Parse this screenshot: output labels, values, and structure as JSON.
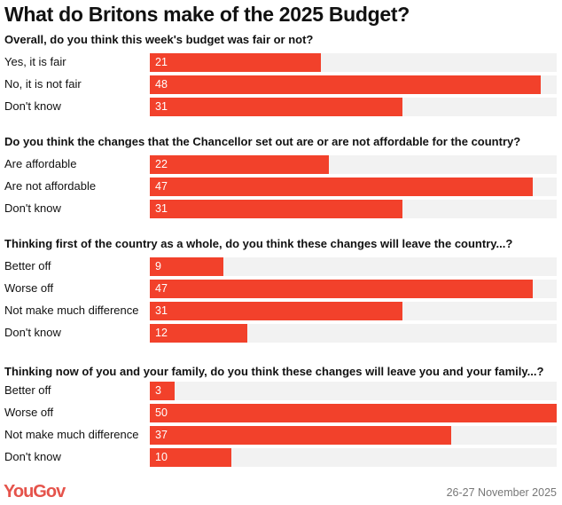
{
  "chart_data": {
    "type": "bar",
    "title": "What do Britons make of the 2025 Budget?",
    "xlim": [
      0,
      50
    ],
    "bar_color": "#f2412b",
    "track_color": "#f2f2f2",
    "groups": [
      {
        "question": "Overall, do you think this week's budget was fair or not?",
        "categories": [
          "Yes, it is fair",
          "No, it is not fair",
          "Don't know"
        ],
        "values": [
          21,
          48,
          31
        ]
      },
      {
        "question": "Do you think the changes that the Chancellor set out are or are not affordable for the country?",
        "categories": [
          "Are affordable",
          "Are not affordable",
          "Don't know"
        ],
        "values": [
          22,
          47,
          31
        ]
      },
      {
        "question": "Thinking first of the country as a whole, do you think these changes will leave the country...?",
        "categories": [
          "Better off",
          "Worse off",
          "Not make much difference",
          "Don't know"
        ],
        "values": [
          9,
          47,
          31,
          12
        ]
      },
      {
        "question": "Thinking now of you and your family, do you think these changes will leave you and your family...?",
        "categories": [
          "Better off",
          "Worse off",
          "Not make much difference",
          "Don't know"
        ],
        "values": [
          3,
          50,
          37,
          10
        ]
      }
    ]
  },
  "footer": {
    "logo": "YouGov",
    "date": "26-27 November 2025"
  }
}
